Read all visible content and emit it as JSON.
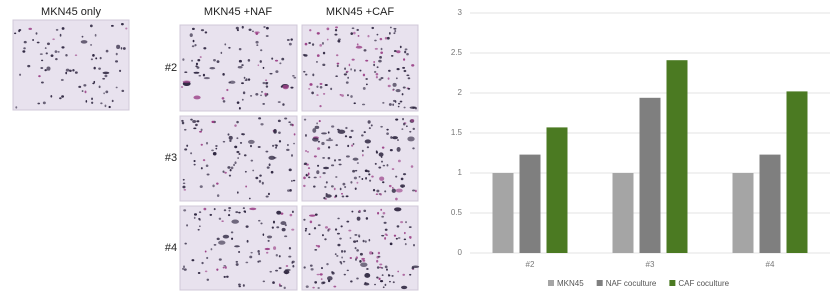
{
  "figure": {
    "single_title": "MKN45 only",
    "columns": [
      "MKN45 +NAF",
      "MKN45 +CAF"
    ],
    "rows": [
      "#2",
      "#3",
      "#4"
    ]
  },
  "chart_data": {
    "type": "bar",
    "categories": [
      "#2",
      "#3",
      "#4"
    ],
    "series": [
      {
        "name": "MKN45",
        "color": "#a5a5a5",
        "values": [
          1,
          1,
          1
        ]
      },
      {
        "name": "NAF coculture",
        "color": "#7f7f7f",
        "values": [
          1.23,
          1.94,
          1.23
        ]
      },
      {
        "name": "CAF coculture",
        "color": "#4b7a22",
        "values": [
          1.57,
          2.41,
          2.02
        ]
      }
    ],
    "ylim": [
      0,
      3
    ],
    "yticks": [
      0,
      0.5,
      1,
      1.5,
      2,
      2.5,
      3
    ],
    "grid": true,
    "legend": "bottom"
  }
}
